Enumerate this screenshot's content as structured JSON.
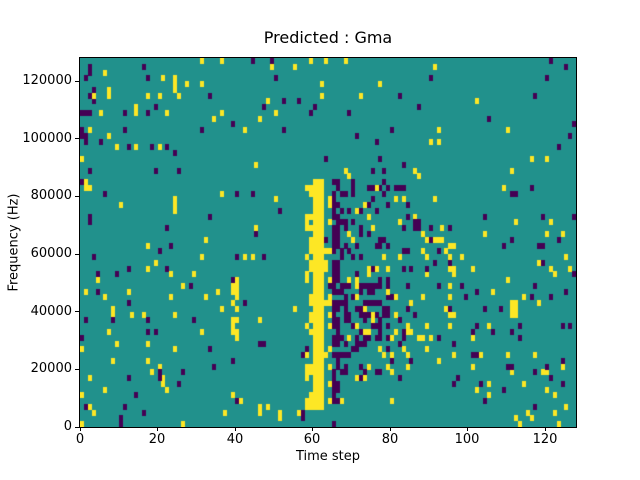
{
  "chart_data": {
    "type": "heatmap",
    "title": "Predicted : Gma",
    "xlabel": "Time step",
    "ylabel": "Frequency (Hz)",
    "x_range": [
      0,
      128
    ],
    "y_range": [
      0,
      128000
    ],
    "xtick_values": [
      0,
      20,
      40,
      60,
      80,
      100,
      120
    ],
    "xtick_labels": [
      "0",
      "20",
      "40",
      "60",
      "80",
      "100",
      "120"
    ],
    "ytick_values": [
      0,
      20000,
      40000,
      60000,
      80000,
      100000,
      120000
    ],
    "ytick_labels": [
      "0",
      "20000",
      "40000",
      "60000",
      "80000",
      "100000",
      "120000"
    ],
    "grid": {
      "cols": 128,
      "rows": 64
    },
    "colormap": "viridis",
    "colors": {
      "background": "#21918c",
      "low": "#440154",
      "high": "#fde725"
    },
    "legend": "none",
    "seed": 42,
    "noise_regions": [
      {
        "c0": 0,
        "c1": 127,
        "r0": 0,
        "r1": 63,
        "color": "high",
        "density": 0.014
      },
      {
        "c0": 0,
        "c1": 127,
        "r0": 0,
        "r1": 63,
        "color": "low",
        "density": 0.013
      },
      {
        "c0": 84,
        "c1": 127,
        "r0": 0,
        "r1": 34,
        "color": "high",
        "density": 0.018
      },
      {
        "c0": 84,
        "c1": 127,
        "r0": 0,
        "r1": 34,
        "color": "low",
        "density": 0.018
      },
      {
        "c0": 0,
        "c1": 40,
        "r0": 0,
        "r1": 30,
        "color": "high",
        "density": 0.008
      },
      {
        "c0": 0,
        "c1": 40,
        "r0": 0,
        "r1": 30,
        "color": "low",
        "density": 0.008
      },
      {
        "c0": 0,
        "c1": 6,
        "r0": 36,
        "r1": 63,
        "color": "low",
        "density": 0.04
      },
      {
        "c0": 0,
        "c1": 30,
        "r0": 44,
        "r1": 63,
        "color": "high",
        "density": 0.012
      },
      {
        "c0": 0,
        "c1": 30,
        "r0": 44,
        "r1": 63,
        "color": "low",
        "density": 0.012
      },
      {
        "c0": 44,
        "c1": 58,
        "r0": 44,
        "r1": 58,
        "color": "low",
        "density": 0.02
      },
      {
        "c0": 60,
        "c1": 72,
        "r0": 46,
        "r1": 58,
        "color": "high",
        "density": 0.02
      },
      {
        "c0": 100,
        "c1": 120,
        "r0": 40,
        "r1": 56,
        "color": "high",
        "density": 0.015
      }
    ],
    "features": [
      {
        "name": "main-yellow-band",
        "color": "high",
        "c0": 60,
        "c1": 62,
        "r0": 3,
        "r1": 42,
        "fill": 1
      },
      {
        "name": "yellow-band-left-fringe",
        "color": "high",
        "c0": 58,
        "c1": 59,
        "r0": 3,
        "r1": 41,
        "fill": 0.3
      },
      {
        "name": "yellow-band-right-fringe",
        "color": "high",
        "c0": 63,
        "c1": 64,
        "r0": 3,
        "r1": 40,
        "fill": 0.25
      },
      {
        "name": "main-purple-band",
        "color": "low",
        "c0": 65,
        "c1": 66,
        "r0": 4,
        "r1": 42,
        "fill": 0.78
      },
      {
        "name": "purple-band-fringe",
        "color": "low",
        "c0": 67,
        "c1": 68,
        "r0": 5,
        "r1": 40,
        "fill": 0.3
      },
      {
        "name": "purple-cluster",
        "color": "low",
        "c0": 69,
        "c1": 80,
        "r0": 8,
        "r1": 42,
        "fill": 0.17
      },
      {
        "name": "purple-blob",
        "color": "low",
        "c0": 72,
        "c1": 77,
        "r0": 14,
        "r1": 24,
        "fill": 0.45
      },
      {
        "name": "cluster-yellow-speckle",
        "color": "high",
        "c0": 69,
        "c1": 92,
        "r0": 8,
        "r1": 44,
        "fill": 0.06
      },
      {
        "name": "right-of-cluster-purple",
        "color": "low",
        "c0": 81,
        "c1": 92,
        "r0": 8,
        "r1": 44,
        "fill": 0.09
      },
      {
        "name": "yellow-streak-col40",
        "color": "high",
        "c0": 39,
        "c1": 40,
        "r0": 15,
        "r1": 25,
        "fill": 0.5
      },
      {
        "name": "yellow-streak-col95",
        "color": "high",
        "c0": 94,
        "c1": 96,
        "r0": 17,
        "r1": 31,
        "fill": 0.4
      },
      {
        "name": "yellow-patch-col111",
        "color": "high",
        "c0": 111,
        "c1": 112,
        "r0": 19,
        "r1": 21,
        "fill": 0.8
      }
    ],
    "anchor_cells": [
      {
        "c": 2,
        "r": 61,
        "v": "low"
      },
      {
        "c": 2,
        "r": 62,
        "v": "low"
      },
      {
        "c": 1,
        "r": 60,
        "v": "low"
      },
      {
        "c": 3,
        "r": 58,
        "v": "low"
      },
      {
        "c": 7,
        "r": 57,
        "v": "high"
      },
      {
        "c": 7,
        "r": 58,
        "v": "high"
      },
      {
        "c": 1,
        "r": 54,
        "v": "low"
      },
      {
        "c": 2,
        "r": 54,
        "v": "low"
      },
      {
        "c": 5,
        "r": 54,
        "v": "high"
      },
      {
        "c": 11,
        "r": 54,
        "v": "low"
      },
      {
        "c": 14,
        "r": 54,
        "v": "high"
      },
      {
        "c": 14,
        "r": 55,
        "v": "high"
      },
      {
        "c": 17,
        "r": 60,
        "v": "low"
      },
      {
        "c": 24,
        "r": 60,
        "v": "high"
      },
      {
        "c": 7,
        "r": 50,
        "v": "high"
      },
      {
        "c": 9,
        "r": 48,
        "v": "high"
      },
      {
        "c": 12,
        "r": 48,
        "v": "low"
      },
      {
        "c": 1,
        "r": 41,
        "v": "high"
      },
      {
        "c": 2,
        "r": 41,
        "v": "high"
      },
      {
        "c": 1,
        "r": 42,
        "v": "high"
      },
      {
        "c": 44,
        "r": 63,
        "v": "low"
      },
      {
        "c": 68,
        "r": 63,
        "v": "high"
      },
      {
        "c": 47,
        "r": 55,
        "v": "low"
      },
      {
        "c": 10,
        "r": 0,
        "v": "low"
      },
      {
        "c": 10,
        "r": 1,
        "v": "low"
      },
      {
        "c": 16,
        "r": 2,
        "v": "low"
      },
      {
        "c": 46,
        "r": 2,
        "v": "high"
      },
      {
        "c": 46,
        "r": 3,
        "v": "high"
      },
      {
        "c": 51,
        "r": 1,
        "v": "high"
      },
      {
        "c": 51,
        "r": 2,
        "v": "high"
      },
      {
        "c": 57,
        "r": 1,
        "v": "low"
      },
      {
        "c": 57,
        "r": 2,
        "v": "low"
      },
      {
        "c": 24,
        "r": 37,
        "v": "high"
      },
      {
        "c": 24,
        "r": 38,
        "v": "high"
      },
      {
        "c": 24,
        "r": 39,
        "v": "high"
      }
    ]
  }
}
